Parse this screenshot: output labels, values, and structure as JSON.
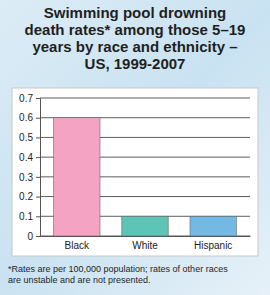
{
  "chart_data": {
    "type": "bar",
    "title": [
      "Swimming pool drowning",
      "death rates* among those 5–19",
      "years by race and ethnicity –",
      "US, 1999-2007"
    ],
    "categories": [
      "Black",
      "White",
      "Hispanic"
    ],
    "values": [
      0.6,
      0.1,
      0.1
    ],
    "colors": [
      "#f4a3c3",
      "#5ec5b6",
      "#74b8e4"
    ],
    "ylim": [
      0,
      0.7
    ],
    "yticks": [
      0,
      0.1,
      0.2,
      0.3,
      0.4,
      0.5,
      0.6,
      0.7
    ],
    "grid": true,
    "footnote": [
      "*Rates are per 100,000 population; rates of other races",
      "are unstable and are not presented."
    ]
  }
}
